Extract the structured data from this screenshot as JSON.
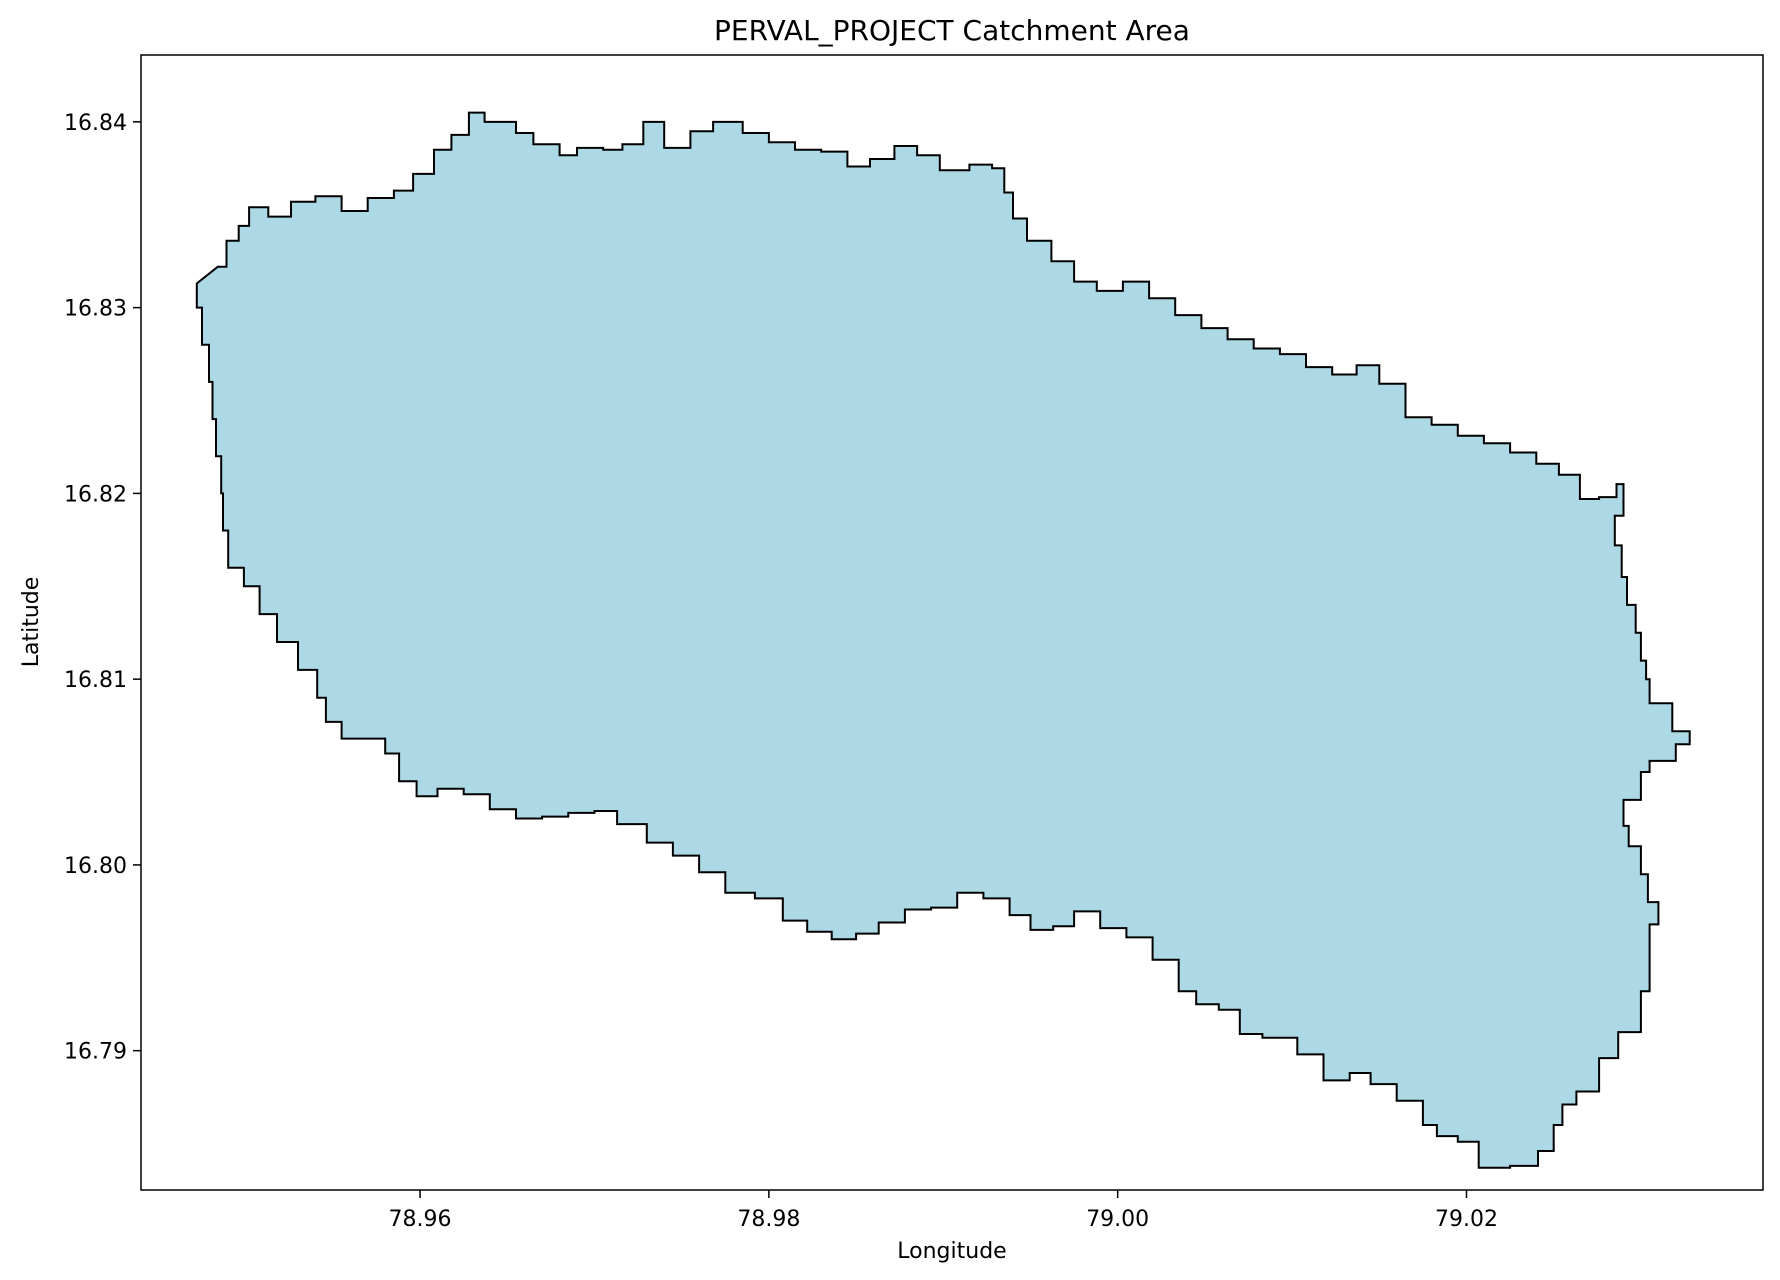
{
  "chart_data": {
    "type": "area",
    "title": "PERVAL_PROJECT Catchment Area",
    "xlabel": "Longitude",
    "ylabel": "Latitude",
    "xlim": [
      78.944,
      79.037
    ],
    "ylim": [
      16.7825,
      16.8436
    ],
    "x_ticks": [
      "78.96",
      "78.98",
      "79.00",
      "79.02"
    ],
    "y_ticks": [
      "16.79",
      "16.80",
      "16.81",
      "16.82",
      "16.83",
      "16.84"
    ],
    "grid": false,
    "series": [
      {
        "fill": "#add8e6",
        "edge": "#000000",
        "boundary": [
          [
            78.9484,
            16.8322
          ],
          [
            78.9489,
            16.8336
          ],
          [
            78.9496,
            16.8344
          ],
          [
            78.9502,
            16.8354
          ],
          [
            78.9513,
            16.8349
          ],
          [
            78.9526,
            16.8357
          ],
          [
            78.954,
            16.836
          ],
          [
            78.9555,
            16.8352
          ],
          [
            78.957,
            16.8359
          ],
          [
            78.9585,
            16.8363
          ],
          [
            78.9596,
            16.8372
          ],
          [
            78.9608,
            16.8385
          ],
          [
            78.9618,
            16.8393
          ],
          [
            78.9628,
            16.8405
          ],
          [
            78.9637,
            16.84
          ],
          [
            78.9655,
            16.8394
          ],
          [
            78.9665,
            16.8388
          ],
          [
            78.968,
            16.8382
          ],
          [
            78.969,
            16.8386
          ],
          [
            78.9705,
            16.8385
          ],
          [
            78.9716,
            16.8388
          ],
          [
            78.9728,
            16.84
          ],
          [
            78.974,
            16.8386
          ],
          [
            78.9755,
            16.8395
          ],
          [
            78.9768,
            16.84
          ],
          [
            78.9785,
            16.8394
          ],
          [
            78.98,
            16.8389
          ],
          [
            78.9815,
            16.8385
          ],
          [
            78.983,
            16.8384
          ],
          [
            78.9845,
            16.8376
          ],
          [
            78.9858,
            16.838
          ],
          [
            78.9872,
            16.8387
          ],
          [
            78.9885,
            16.8382
          ],
          [
            78.9898,
            16.8374
          ],
          [
            78.9915,
            16.8377
          ],
          [
            78.9928,
            16.8375
          ],
          [
            78.9935,
            16.8362
          ],
          [
            78.994,
            16.8348
          ],
          [
            78.9948,
            16.8336
          ],
          [
            78.9962,
            16.8325
          ],
          [
            78.9975,
            16.8314
          ],
          [
            78.9988,
            16.8309
          ],
          [
            79.0003,
            16.8314
          ],
          [
            79.0018,
            16.8305
          ],
          [
            79.0033,
            16.8296
          ],
          [
            79.0048,
            16.8289
          ],
          [
            79.0063,
            16.8283
          ],
          [
            79.0078,
            16.8278
          ],
          [
            79.0093,
            16.8275
          ],
          [
            79.0108,
            16.8268
          ],
          [
            79.0123,
            16.8264
          ],
          [
            79.0137,
            16.8269
          ],
          [
            79.015,
            16.8259
          ],
          [
            79.0165,
            16.8241
          ],
          [
            79.018,
            16.8237
          ],
          [
            79.0195,
            16.8231
          ],
          [
            79.021,
            16.8227
          ],
          [
            79.0225,
            16.8222
          ],
          [
            79.024,
            16.8216
          ],
          [
            79.0253,
            16.821
          ],
          [
            79.0265,
            16.8197
          ],
          [
            79.0276,
            16.8198
          ],
          [
            79.0286,
            16.8205
          ],
          [
            79.029,
            16.8188
          ],
          [
            79.0285,
            16.8172
          ],
          [
            79.0289,
            16.8155
          ],
          [
            79.0292,
            16.814
          ],
          [
            79.0297,
            16.8125
          ],
          [
            79.03,
            16.811
          ],
          [
            79.0303,
            16.81
          ],
          [
            79.0305,
            16.8087
          ],
          [
            79.0318,
            16.8072
          ],
          [
            79.0328,
            16.8065
          ],
          [
            79.032,
            16.8056
          ],
          [
            79.0305,
            16.805
          ],
          [
            79.03,
            16.8035
          ],
          [
            79.029,
            16.8021
          ],
          [
            79.0293,
            16.801
          ],
          [
            79.03,
            16.7995
          ],
          [
            79.0304,
            16.798
          ],
          [
            79.031,
            16.7968
          ],
          [
            79.0305,
            16.795
          ],
          [
            79.0305,
            16.7932
          ],
          [
            79.03,
            16.791
          ],
          [
            79.0287,
            16.7896
          ],
          [
            79.0276,
            16.7878
          ],
          [
            79.0263,
            16.7871
          ],
          [
            79.0255,
            16.786
          ],
          [
            79.025,
            16.7846
          ],
          [
            79.0241,
            16.7838
          ],
          [
            79.0225,
            16.7837
          ],
          [
            79.0207,
            16.7851
          ],
          [
            79.0195,
            16.7854
          ],
          [
            79.0183,
            16.786
          ],
          [
            79.0175,
            16.7873
          ],
          [
            79.016,
            16.7882
          ],
          [
            79.0145,
            16.7888
          ],
          [
            79.0133,
            16.7884
          ],
          [
            79.0118,
            16.7898
          ],
          [
            79.0103,
            16.7907
          ],
          [
            79.0083,
            16.7909
          ],
          [
            79.007,
            16.7922
          ],
          [
            79.0058,
            16.7925
          ],
          [
            79.0045,
            16.7932
          ],
          [
            79.0035,
            16.7949
          ],
          [
            79.002,
            16.7961
          ],
          [
            79.0005,
            16.7966
          ],
          [
            78.999,
            16.7975
          ],
          [
            78.9975,
            16.7967
          ],
          [
            78.9963,
            16.7965
          ],
          [
            78.995,
            16.7973
          ],
          [
            78.9938,
            16.7982
          ],
          [
            78.9923,
            16.7985
          ],
          [
            78.9908,
            16.7977
          ],
          [
            78.9893,
            16.7976
          ],
          [
            78.9878,
            16.7969
          ],
          [
            78.9863,
            16.7963
          ],
          [
            78.985,
            16.796
          ],
          [
            78.9836,
            16.7964
          ],
          [
            78.9822,
            16.797
          ],
          [
            78.9808,
            16.7982
          ],
          [
            78.9792,
            16.7985
          ],
          [
            78.9775,
            16.7996
          ],
          [
            78.976,
            16.8005
          ],
          [
            78.9745,
            16.8012
          ],
          [
            78.973,
            16.8022
          ],
          [
            78.9713,
            16.8029
          ],
          [
            78.97,
            16.8028
          ],
          [
            78.9685,
            16.8026
          ],
          [
            78.967,
            16.8025
          ],
          [
            78.9655,
            16.803
          ],
          [
            78.964,
            16.8038
          ],
          [
            78.9625,
            16.8041
          ],
          [
            78.961,
            16.8037
          ],
          [
            78.9598,
            16.8045
          ],
          [
            78.9588,
            16.806
          ],
          [
            78.958,
            16.8068
          ],
          [
            78.9565,
            16.8068
          ],
          [
            78.9555,
            16.8077
          ],
          [
            78.9546,
            16.809
          ],
          [
            78.9541,
            16.8105
          ],
          [
            78.953,
            16.812
          ],
          [
            78.9518,
            16.8135
          ],
          [
            78.9508,
            16.815
          ],
          [
            78.9499,
            16.816
          ],
          [
            78.949,
            16.818
          ],
          [
            78.9487,
            16.82
          ],
          [
            78.9486,
            16.822
          ],
          [
            78.9483,
            16.824
          ],
          [
            78.9481,
            16.826
          ],
          [
            78.9479,
            16.828
          ],
          [
            78.9475,
            16.83
          ],
          [
            78.9472,
            16.8313
          ]
        ]
      }
    ]
  }
}
